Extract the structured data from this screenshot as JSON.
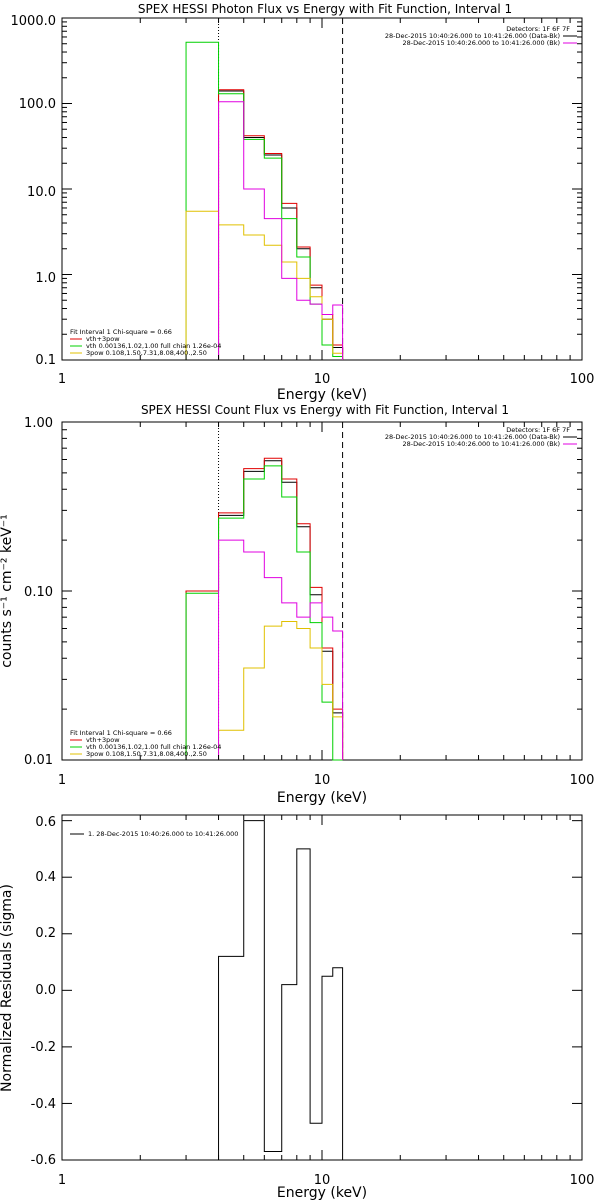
{
  "chart_data": [
    {
      "type": "line",
      "title": "SPEX HESSI Photon Flux vs Energy with Fit Function, Interval 1",
      "xlabel": "Energy (keV)",
      "ylabel": "",
      "xscale": "log",
      "yscale": "log",
      "xlim": [
        1,
        100
      ],
      "ylim": [
        0.1,
        1000
      ],
      "x_ticks": [
        "1",
        "10",
        "100"
      ],
      "y_ticks": [
        "0.1",
        "1.0",
        "10.0",
        "100.0",
        "1000.0"
      ],
      "vlines": [
        {
          "x": 4.0,
          "style": "dotted"
        },
        {
          "x": 12.0,
          "style": "dashed"
        }
      ],
      "legend_top_right": {
        "header": "Detectors: 1F 6F 7F",
        "entries": [
          {
            "text": "28-Dec-2015 10:40:26.000 to 10:41:26.000 (Data-Bk)",
            "color": "#000000"
          },
          {
            "text": "28-Dec-2015 10:40:26.000 to 10:41:26.000 (Bk)",
            "color": "#e000e0"
          }
        ]
      },
      "legend_bottom_left": {
        "header": "Fit Interval 1   Chi-square = 0.66",
        "entries": [
          {
            "text": "vth+3pow",
            "color": "#e00000"
          },
          {
            "text": "vth 0.00136,1.02,1.00  full chian 1.26e-04",
            "color": "#00d000"
          },
          {
            "text": "3pow 0.108,1.50,7.31,8.08,400.,2.50",
            "color": "#e0c000"
          }
        ]
      },
      "edges": [
        3,
        4,
        5,
        6,
        7,
        8,
        9,
        10,
        11,
        12
      ],
      "series": [
        {
          "color": "#000000",
          "values": [
            null,
            140,
            40,
            25,
            6.0,
            2.0,
            0.7,
            0.3,
            0.14
          ]
        },
        {
          "color": "#e00000",
          "values": [
            null,
            145,
            42,
            26,
            6.8,
            2.1,
            0.75,
            0.34,
            0.15
          ]
        },
        {
          "color": "#00d000",
          "values": [
            520,
            130,
            38,
            23,
            4.5,
            1.6,
            0.45,
            0.15,
            0.11
          ]
        },
        {
          "color": "#e0c000",
          "values": [
            5.5,
            3.8,
            2.9,
            2.2,
            1.4,
            0.9,
            0.55,
            0.3,
            0.12
          ]
        },
        {
          "color": "#e000e0",
          "values": [
            null,
            105,
            10,
            4.5,
            0.9,
            0.5,
            0.45,
            0.34,
            0.44
          ]
        }
      ]
    },
    {
      "type": "line",
      "title": "SPEX HESSI Count Flux vs Energy with Fit Function, Interval 1",
      "xlabel": "Energy (keV)",
      "ylabel": "counts s⁻¹ cm⁻² keV⁻¹",
      "xscale": "log",
      "yscale": "log",
      "xlim": [
        1,
        100
      ],
      "ylim": [
        0.01,
        1
      ],
      "x_ticks": [
        "1",
        "10",
        "100"
      ],
      "y_ticks": [
        "0.01",
        "0.10",
        "1.00"
      ],
      "vlines": [
        {
          "x": 4.0,
          "style": "dotted"
        },
        {
          "x": 12.0,
          "style": "dashed"
        }
      ],
      "legend_top_right": {
        "header": "Detectors: 1F 6F 7F",
        "entries": [
          {
            "text": "28-Dec-2015 10:40:26.000 to 10:41:26.000 (Data-Bk)",
            "color": "#000000"
          },
          {
            "text": "28-Dec-2015 10:40:26.000 to 10:41:26.000 (Bk)",
            "color": "#e000e0"
          }
        ]
      },
      "legend_bottom_left": {
        "header": "Fit Interval 1   Chi-square = 0.66",
        "entries": [
          {
            "text": "vth+3pow",
            "color": "#e00000"
          },
          {
            "text": "vth 0.00136,1.02,1.00  full chian 1.26e-04",
            "color": "#00d000"
          },
          {
            "text": "3pow 0.108,1.50,7.31,8.08,400.,2.50",
            "color": "#e0c000"
          }
        ]
      },
      "edges": [
        3,
        4,
        5,
        6,
        7,
        8,
        9,
        10,
        11,
        12
      ],
      "series": [
        {
          "color": "#000000",
          "values": [
            0.1,
            0.28,
            0.51,
            0.59,
            0.44,
            0.24,
            0.095,
            0.044,
            0.019
          ]
        },
        {
          "color": "#e00000",
          "values": [
            0.1,
            0.29,
            0.53,
            0.61,
            0.46,
            0.25,
            0.105,
            0.046,
            0.02
          ]
        },
        {
          "color": "#00d000",
          "values": [
            0.097,
            0.27,
            0.46,
            0.55,
            0.36,
            0.17,
            0.065,
            0.022,
            0.009
          ]
        },
        {
          "color": "#e0c000",
          "values": [
            null,
            0.015,
            0.035,
            0.062,
            0.066,
            0.06,
            0.046,
            0.028,
            0.018
          ]
        },
        {
          "color": "#e000e0",
          "values": [
            null,
            0.2,
            0.17,
            0.12,
            0.085,
            0.07,
            0.085,
            0.07,
            0.058
          ]
        }
      ]
    },
    {
      "type": "line",
      "title": "",
      "xlabel": "Energy (keV)",
      "ylabel": "Normalized Residuals (sigma)",
      "xscale": "log",
      "yscale": "linear",
      "xlim": [
        1,
        100
      ],
      "ylim": [
        -0.6,
        0.62
      ],
      "x_ticks": [
        "1",
        "10",
        "100"
      ],
      "y_ticks": [
        "-0.6",
        "-0.4",
        "-0.2",
        "0.0",
        "0.2",
        "0.4",
        "0.6"
      ],
      "legend": "1. 28-Dec-2015 10:40:26.000 to 10:41:26.000",
      "edges": [
        4,
        5,
        6,
        7,
        8,
        9,
        10,
        11,
        12
      ],
      "series": [
        {
          "color": "#000000",
          "values": [
            0.12,
            0.6,
            -0.57,
            0.02,
            0.5,
            -0.47,
            0.05,
            0.08
          ]
        }
      ]
    }
  ]
}
